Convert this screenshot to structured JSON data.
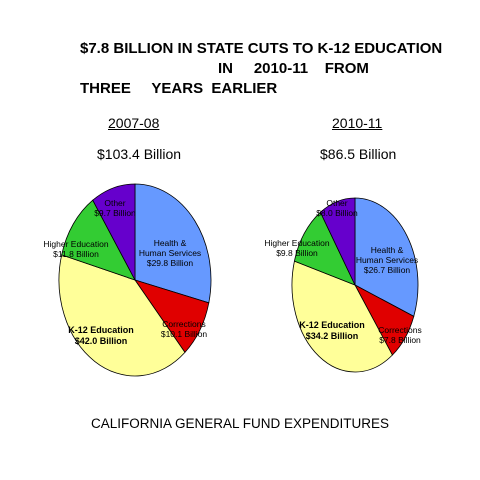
{
  "title": {
    "line1": "$7.8 BILLION IN STATE CUTS TO K-12 EDUCATION",
    "line2": "IN     2010-11    FROM",
    "line3": "THREE     YEARS  EARLIER"
  },
  "footer": "CALIFORNIA GENERAL FUND EXPENDITURES",
  "colors": {
    "health": "#6699ff",
    "corrections": "#e00000",
    "k12": "#ffff99",
    "higher": "#33cc33",
    "other": "#6600cc"
  },
  "chart_data": [
    {
      "type": "pie",
      "title": "2007-08",
      "subtitle": "$103.4 Billion",
      "slices": [
        {
          "key": "health",
          "name": "Health & Human Services",
          "value": 29.8,
          "lines": [
            "Health &",
            "Human Services",
            "$29.8 Billion"
          ]
        },
        {
          "key": "corrections",
          "name": "Corrections",
          "value": 10.1,
          "lines": [
            "Corrections",
            "$10.1 Billion"
          ]
        },
        {
          "key": "k12",
          "name": "K-12 Education",
          "value": 42.0,
          "lines": [
            "K-12 Education",
            "$42.0 Billion"
          ]
        },
        {
          "key": "higher",
          "name": "Higher Education",
          "value": 11.8,
          "lines": [
            "Higher Education",
            "$11.8 Billion"
          ]
        },
        {
          "key": "other",
          "name": "Other",
          "value": 9.7,
          "lines": [
            "Other",
            "$9.7 Billion"
          ]
        }
      ]
    },
    {
      "type": "pie",
      "title": "2010-11",
      "subtitle": "$86.5 Billion",
      "slices": [
        {
          "key": "health",
          "name": "Health & Human Services",
          "value": 26.7,
          "lines": [
            "Health &",
            "Human Services",
            "$26.7 Billion"
          ]
        },
        {
          "key": "corrections",
          "name": "Corrections",
          "value": 7.8,
          "lines": [
            "Corrections",
            "$7.8 Billion"
          ]
        },
        {
          "key": "k12",
          "name": "K-12 Education",
          "value": 34.2,
          "lines": [
            "K-12 Education",
            "$34.2 Billion"
          ]
        },
        {
          "key": "higher",
          "name": "Higher Education",
          "value": 9.8,
          "lines": [
            "Higher Education",
            "$9.8 Billion"
          ]
        },
        {
          "key": "other",
          "name": "Other",
          "value": 8.0,
          "lines": [
            "Other",
            "$8.0 Billion"
          ]
        }
      ]
    }
  ]
}
